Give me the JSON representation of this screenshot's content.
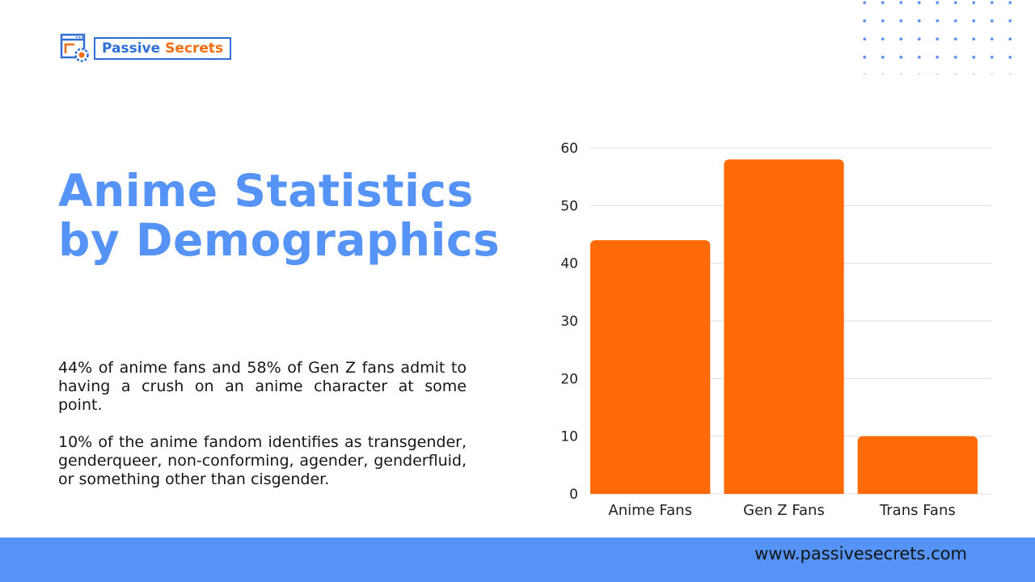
{
  "brand": {
    "name_part1": "Passive",
    "name_part2": "Secrets",
    "primary_color": "#2f6fd6",
    "accent_color": "#f06d12",
    "icon": "browser-gear-icon"
  },
  "title": {
    "line1": "Anime Statistics",
    "line2": "by Demographics",
    "color": "#5593f7"
  },
  "paragraphs": [
    "44% of anime fans and 58% of Gen Z fans admit to having a crush on an anime character at some point.",
    "10% of the anime fandom identifies as transgender, genderqueer, non-conforming, agender, genderfluid, or something other than cisgender."
  ],
  "footer": {
    "url": "www.passivesecrets.com",
    "background": "#5593f7"
  },
  "chart_data": {
    "type": "bar",
    "categories": [
      "Anime Fans",
      "Gen Z Fans",
      "Trans Fans"
    ],
    "values": [
      44,
      58,
      10
    ],
    "ylim": [
      0,
      60
    ],
    "yticks": [
      0,
      10,
      20,
      30,
      40,
      50,
      60
    ],
    "bar_color": "#ff6a08",
    "grid": true,
    "title": "",
    "xlabel": "",
    "ylabel": ""
  }
}
